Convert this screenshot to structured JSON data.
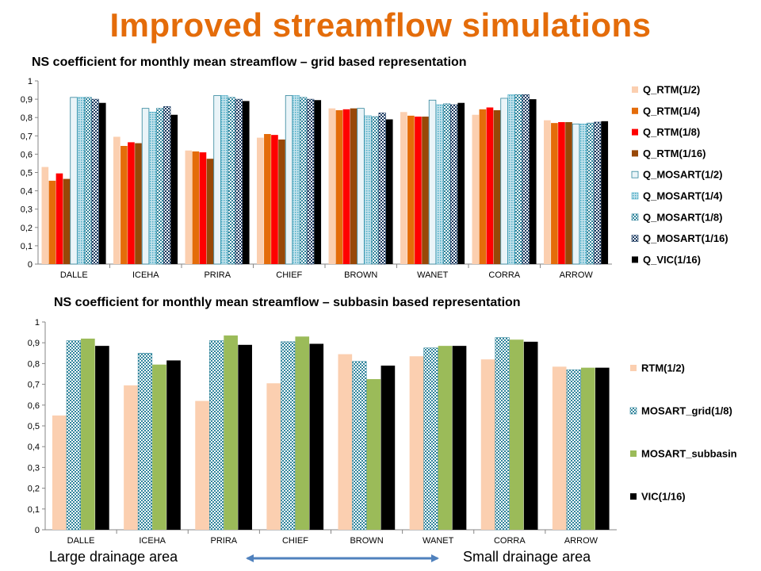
{
  "title": "Improved streamflow simulations",
  "footer": {
    "left": "Large drainage area",
    "right": "Small drainage area"
  },
  "colors": {
    "title": "#E46C0A",
    "arrow": "#4F81BD"
  },
  "chart_data": [
    {
      "type": "bar",
      "title": "NS coefficient for monthly mean streamflow – grid based representation",
      "categories": [
        "DALLE",
        "ICEHA",
        "PRIRA",
        "CHIEF",
        "BROWN",
        "WANET",
        "CORRA",
        "ARROW"
      ],
      "ylim": [
        0,
        1
      ],
      "yticks": [
        "0",
        "0,1",
        "0,2",
        "0,3",
        "0,4",
        "0,5",
        "0,6",
        "0,7",
        "0,8",
        "0,9",
        "1"
      ],
      "legend_position": "right",
      "grid": false,
      "series": [
        {
          "name": "Q_RTM(1/2)",
          "color": "#FBCFB0",
          "pattern": "solid",
          "values": [
            0.53,
            0.695,
            0.62,
            0.69,
            0.85,
            0.83,
            0.815,
            0.785
          ]
        },
        {
          "name": "Q_RTM(1/4)",
          "color": "#E46C0A",
          "pattern": "solid",
          "values": [
            0.455,
            0.645,
            0.615,
            0.71,
            0.84,
            0.81,
            0.845,
            0.77
          ]
        },
        {
          "name": "Q_RTM(1/8)",
          "color": "#FF0000",
          "pattern": "solid",
          "values": [
            0.495,
            0.665,
            0.61,
            0.705,
            0.845,
            0.805,
            0.855,
            0.775
          ]
        },
        {
          "name": "Q_RTM(1/16)",
          "color": "#984807",
          "pattern": "solid",
          "values": [
            0.465,
            0.66,
            0.575,
            0.68,
            0.85,
            0.805,
            0.84,
            0.775
          ]
        },
        {
          "name": "Q_MOSART(1/2)",
          "color": "#DAEEF3",
          "pattern": "outline",
          "values": [
            0.91,
            0.85,
            0.92,
            0.92,
            0.85,
            0.895,
            0.905,
            0.765
          ]
        },
        {
          "name": "Q_MOSART(1/4)",
          "color": "#93CDDD",
          "pattern": "dotted",
          "values": [
            0.91,
            0.83,
            0.92,
            0.92,
            0.81,
            0.87,
            0.925,
            0.765
          ]
        },
        {
          "name": "Q_MOSART(1/8)",
          "color": "#31859C",
          "pattern": "checker",
          "values": [
            0.91,
            0.85,
            0.91,
            0.91,
            0.805,
            0.875,
            0.925,
            0.77
          ]
        },
        {
          "name": "Q_MOSART(1/16)",
          "color": "#17375E",
          "pattern": "checker",
          "values": [
            0.9,
            0.86,
            0.9,
            0.9,
            0.825,
            0.87,
            0.925,
            0.775
          ]
        },
        {
          "name": "Q_VIC(1/16)",
          "color": "#000000",
          "pattern": "solid",
          "values": [
            0.88,
            0.815,
            0.89,
            0.895,
            0.79,
            0.88,
            0.9,
            0.78
          ]
        }
      ]
    },
    {
      "type": "bar",
      "title": "NS coefficient for monthly mean streamflow – subbasin based representation",
      "categories": [
        "DALLE",
        "ICEHA",
        "PRIRA",
        "CHIEF",
        "BROWN",
        "WANET",
        "CORRA",
        "ARROW"
      ],
      "ylim": [
        0,
        1
      ],
      "yticks": [
        "0",
        "0,1",
        "0,2",
        "0,3",
        "0,4",
        "0,5",
        "0,6",
        "0,7",
        "0,8",
        "0,9",
        "1"
      ],
      "legend_position": "right",
      "grid": false,
      "series": [
        {
          "name": "RTM(1/2)",
          "color": "#FBCFB0",
          "pattern": "solid",
          "values": [
            0.55,
            0.695,
            0.62,
            0.705,
            0.845,
            0.835,
            0.82,
            0.785
          ]
        },
        {
          "name": "MOSART_grid(1/8)",
          "color": "#31859C",
          "pattern": "checker",
          "values": [
            0.91,
            0.85,
            0.91,
            0.905,
            0.81,
            0.875,
            0.925,
            0.77
          ]
        },
        {
          "name": "MOSART_subbasin",
          "color": "#9BBB59",
          "pattern": "solid",
          "values": [
            0.92,
            0.795,
            0.935,
            0.93,
            0.725,
            0.885,
            0.915,
            0.78
          ]
        },
        {
          "name": "VIC(1/16)",
          "color": "#000000",
          "pattern": "solid",
          "values": [
            0.885,
            0.815,
            0.89,
            0.895,
            0.79,
            0.885,
            0.905,
            0.78
          ]
        }
      ]
    }
  ]
}
